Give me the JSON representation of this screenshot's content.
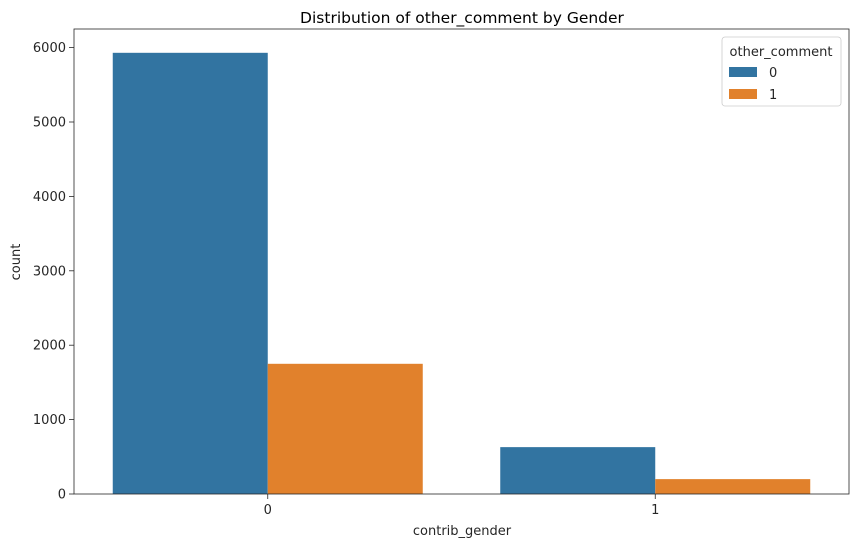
{
  "chart_data": {
    "type": "bar",
    "title": "Distribution of other_comment by Gender",
    "xlabel": "contrib_gender",
    "ylabel": "count",
    "categories": [
      "0",
      "1"
    ],
    "series": [
      {
        "name": "0",
        "values": [
          5930,
          630
        ],
        "color": "#3274a1"
      },
      {
        "name": "1",
        "values": [
          1750,
          200
        ],
        "color": "#e1812c"
      }
    ],
    "ylim": [
      0,
      6250
    ],
    "yticks": [
      0,
      1000,
      2000,
      3000,
      4000,
      5000,
      6000
    ],
    "grid": false,
    "legend": {
      "title": "other_comment",
      "placement": "top-right"
    }
  }
}
